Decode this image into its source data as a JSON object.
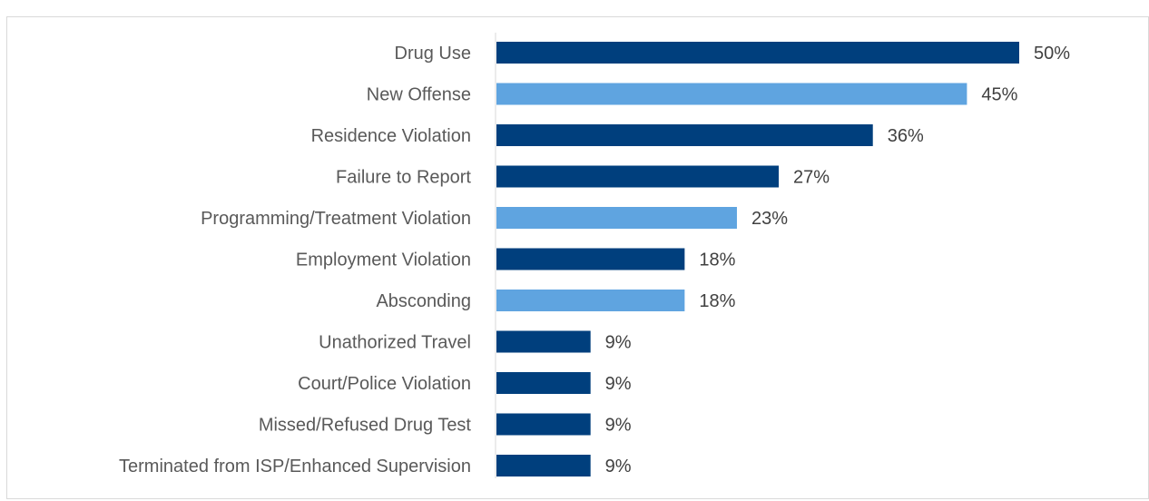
{
  "caption": "",
  "chart_data": {
    "type": "bar",
    "orientation": "horizontal",
    "title": "",
    "xlabel": "",
    "ylabel": "",
    "categories": [
      "Drug Use",
      "New Offense",
      "Residence Violation",
      "Failure to Report",
      "Programming/Treatment Violation",
      "Employment Violation",
      "Absconding",
      "Unathorized Travel",
      "Court/Police Violation",
      "Missed/Refused Drug Test",
      "Terminated from ISP/Enhanced Supervision"
    ],
    "values": [
      50,
      45,
      36,
      27,
      23,
      18,
      18,
      9,
      9,
      9,
      9
    ],
    "value_labels": [
      "50%",
      "45%",
      "36%",
      "27%",
      "23%",
      "18%",
      "18%",
      "9%",
      "9%",
      "9%",
      "9%"
    ],
    "value_unit": "%",
    "xlim": [
      0,
      50
    ],
    "grid": false,
    "legend": "none",
    "bar_colors": [
      "#003f7d",
      "#5fa4e0",
      "#003f7d",
      "#003f7d",
      "#5fa4e0",
      "#003f7d",
      "#5fa4e0",
      "#003f7d",
      "#003f7d",
      "#003f7d",
      "#003f7d"
    ]
  }
}
